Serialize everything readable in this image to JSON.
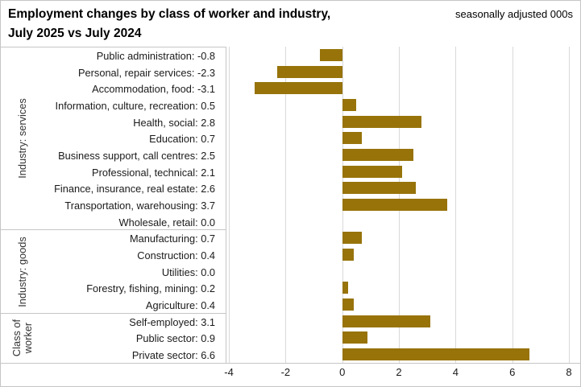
{
  "header": {
    "title_line1": "Employment changes by class of worker and industry,",
    "title_line2": "July 2025 vs July 2024",
    "note": "seasonally adjusted 000s"
  },
  "chart_data": {
    "type": "bar",
    "orientation": "horizontal",
    "title": "Employment changes by class of worker and industry, July 2025 vs July 2024",
    "units_note": "seasonally adjusted 000s",
    "bar_color": "#97730a",
    "grid_color": "#d9d9d9",
    "border_color": "#c6c6c6",
    "xlim": [
      -4.1,
      8.2
    ],
    "x_ticks": [
      -4,
      -2,
      0,
      2,
      4,
      6,
      8
    ],
    "value_format": "one_decimal",
    "legend": "none",
    "grid": "vertical_only",
    "groups": [
      {
        "label": "Industry: services",
        "rows": [
          {
            "label": "Public administration",
            "value": -0.8
          },
          {
            "label": "Personal, repair services",
            "value": -2.3
          },
          {
            "label": "Accommodation, food",
            "value": -3.1
          },
          {
            "label": "Information, culture, recreation",
            "value": 0.5
          },
          {
            "label": "Health, social",
            "value": 2.8
          },
          {
            "label": "Education",
            "value": 0.7
          },
          {
            "label": "Business support, call centres",
            "value": 2.5
          },
          {
            "label": "Professional, technical",
            "value": 2.1
          },
          {
            "label": "Finance, insurance, real estate",
            "value": 2.6
          },
          {
            "label": "Transportation, warehousing",
            "value": 3.7
          },
          {
            "label": "Wholesale, retail",
            "value": 0.0
          }
        ]
      },
      {
        "label": "Industry: goods",
        "rows": [
          {
            "label": "Manufacturing",
            "value": 0.7
          },
          {
            "label": "Construction",
            "value": 0.4
          },
          {
            "label": "Utilities",
            "value": 0.0
          },
          {
            "label": "Forestry, fishing, mining",
            "value": 0.2
          },
          {
            "label": "Agriculture",
            "value": 0.4
          }
        ]
      },
      {
        "label": "Class of worker",
        "rows": [
          {
            "label": "Self-employed",
            "value": 3.1
          },
          {
            "label": "Public sector",
            "value": 0.9
          },
          {
            "label": "Private sector",
            "value": 6.6
          }
        ]
      }
    ]
  }
}
